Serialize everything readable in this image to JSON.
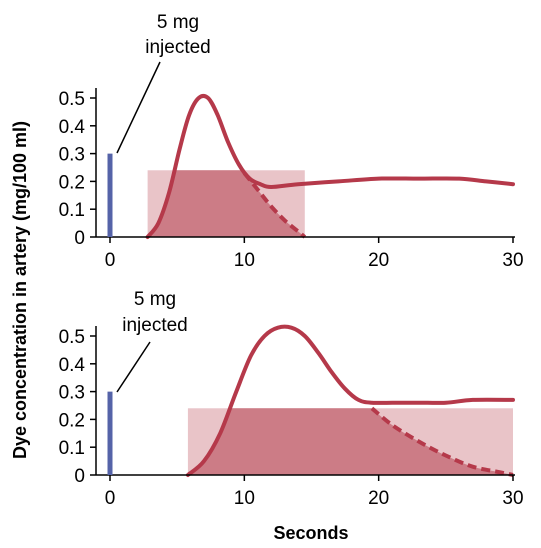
{
  "figure": {
    "ylabel": "Dye concentration in artery (mg/100 ml)",
    "xlabel": "Seconds",
    "colors": {
      "curve": "#b5394a",
      "area_dark": "#cc7c86",
      "area_light": "#e9c4c8",
      "injection_bar": "#5563a8",
      "axis": "#000000"
    }
  },
  "chart_data": [
    {
      "type": "line",
      "annotation": {
        "line1": "5 mg",
        "line2": "injected"
      },
      "xlim": [
        0,
        30
      ],
      "ylim": [
        0,
        0.5
      ],
      "xticks": [
        "0",
        "10",
        "20",
        "30"
      ],
      "yticks": [
        "0",
        "0.1",
        "0.2",
        "0.3",
        "0.4",
        "0.5"
      ],
      "injection": {
        "x": 0,
        "value": 0.3
      },
      "curve": {
        "x": [
          2.8,
          3.6,
          4.4,
          5.2,
          5.9,
          6.6,
          7.3,
          8.0,
          8.8,
          9.6,
          10.4,
          11.2,
          12.0,
          14.0,
          17.0,
          20.0,
          23.0,
          26.0,
          28.0,
          30.0
        ],
        "y": [
          0.0,
          0.05,
          0.16,
          0.32,
          0.44,
          0.5,
          0.5,
          0.44,
          0.34,
          0.26,
          0.21,
          0.19,
          0.18,
          0.19,
          0.2,
          0.21,
          0.21,
          0.21,
          0.2,
          0.19
        ]
      },
      "extrapolated": {
        "x": [
          10.0,
          11.0,
          12.0,
          13.0,
          14.0,
          14.5
        ],
        "y": [
          0.23,
          0.17,
          0.11,
          0.06,
          0.02,
          0.0
        ]
      },
      "mean_concentration": {
        "value": 0.24,
        "x_start": 2.8,
        "x_end": 14.5
      }
    },
    {
      "type": "line",
      "annotation": {
        "line1": "5 mg",
        "line2": "injected"
      },
      "xlim": [
        0,
        30
      ],
      "ylim": [
        0,
        0.5
      ],
      "xticks": [
        "0",
        "10",
        "20",
        "30"
      ],
      "yticks": [
        "0",
        "0.1",
        "0.2",
        "0.3",
        "0.4",
        "0.5"
      ],
      "injection": {
        "x": 0,
        "value": 0.3
      },
      "curve": {
        "x": [
          5.8,
          7.0,
          8.2,
          9.4,
          10.5,
          11.5,
          12.5,
          13.5,
          14.5,
          15.5,
          16.5,
          17.5,
          18.5,
          19.5,
          21.0,
          23.0,
          25.0,
          27.0,
          30.0
        ],
        "y": [
          0.0,
          0.05,
          0.15,
          0.3,
          0.43,
          0.5,
          0.53,
          0.53,
          0.5,
          0.44,
          0.37,
          0.31,
          0.27,
          0.26,
          0.26,
          0.26,
          0.26,
          0.27,
          0.27
        ]
      },
      "extrapolated": {
        "x": [
          19.5,
          21.0,
          23.0,
          25.0,
          27.0,
          29.0,
          30.0
        ],
        "y": [
          0.24,
          0.18,
          0.12,
          0.07,
          0.03,
          0.01,
          0.0
        ]
      },
      "mean_concentration": {
        "value": 0.24,
        "x_start": 5.8,
        "x_end": 30.0
      }
    }
  ]
}
